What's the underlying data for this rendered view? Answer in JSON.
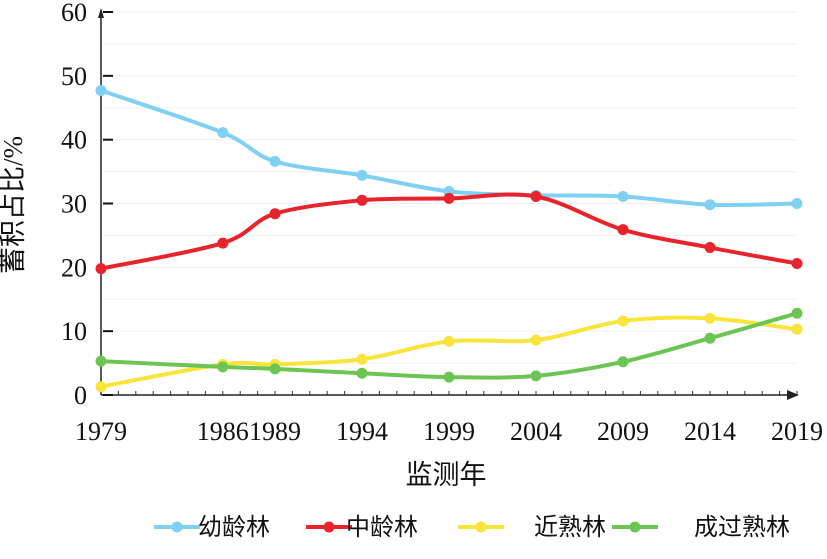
{
  "chart_data": {
    "type": "line",
    "title": "",
    "xlabel": "监测年",
    "ylabel": "蓄积占比/%",
    "ylim": [
      0,
      60
    ],
    "yticks": [
      0,
      10,
      20,
      30,
      40,
      50,
      60
    ],
    "grid": true,
    "legend_placement": "bottom",
    "categories": [
      "1979",
      "1986",
      "1989",
      "1994",
      "1999",
      "2004",
      "2009",
      "2014",
      "2019"
    ],
    "x": [
      1979,
      1986,
      1989,
      1994,
      1999,
      2004,
      2009,
      2014,
      2019
    ],
    "series": [
      {
        "name": "幼龄林",
        "color": "#7fd0f2",
        "values": [
          47.7,
          41.1,
          36.6,
          34.4,
          31.9,
          31.3,
          31.1,
          29.8,
          30.0
        ]
      },
      {
        "name": "中龄林",
        "color": "#e8232b",
        "values": [
          19.8,
          23.8,
          28.4,
          30.5,
          30.8,
          31.1,
          25.9,
          23.1,
          20.6
        ]
      },
      {
        "name": "近熟林",
        "color": "#f9e43b",
        "values": [
          1.3,
          4.8,
          4.8,
          5.6,
          8.4,
          8.6,
          11.6,
          12.0,
          10.3
        ]
      },
      {
        "name": "成过熟林",
        "color": "#6cc552",
        "values": [
          5.3,
          4.4,
          4.1,
          3.4,
          2.8,
          3.0,
          5.2,
          8.9,
          12.8
        ]
      }
    ]
  }
}
